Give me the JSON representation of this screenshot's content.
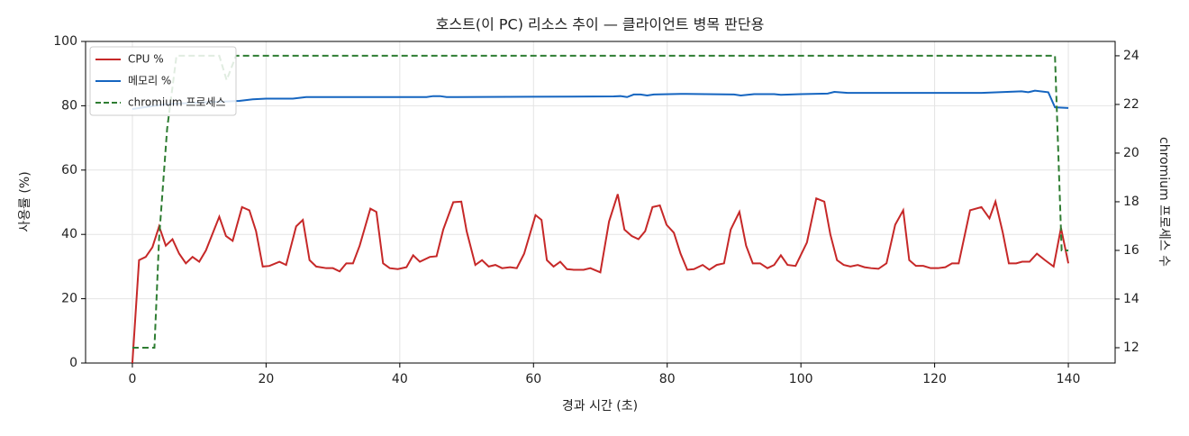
{
  "chart_data": {
    "type": "line",
    "title": "호스트(이 PC) 리소스 추이 — 클라이언트 병목 판단용",
    "xlabel": "경과 시간 (초)",
    "ylabel": "사용률 (%)",
    "y2label": "chromium 프로세스 수",
    "xlim": [
      -7,
      147
    ],
    "xticks": [
      0,
      20,
      40,
      60,
      80,
      100,
      120,
      140
    ],
    "ylim": [
      0,
      100
    ],
    "yticks": [
      0,
      20,
      40,
      60,
      80,
      100
    ],
    "y2lim": [
      11.37,
      24.59
    ],
    "y2ticks": [
      12,
      14,
      16,
      18,
      20,
      22,
      24
    ],
    "grid": true,
    "legend": "upper left",
    "series": [
      {
        "name": "CPU %",
        "color": "#c62828",
        "dash": "solid",
        "x": [
          0,
          1,
          2,
          3,
          4,
          5,
          6,
          7,
          8,
          9,
          10,
          11,
          13,
          14,
          15,
          16.4,
          17.5,
          18.5,
          19.5,
          20.5,
          22,
          23,
          24.5,
          25.5,
          26.5,
          27.5,
          29,
          30,
          31,
          32,
          33,
          34,
          35.6,
          36.5,
          37.5,
          38.5,
          39.7,
          41,
          42,
          43,
          44.5,
          45.5,
          46.5,
          48,
          49.2,
          50,
          51.3,
          52.3,
          53.3,
          54.3,
          55.3,
          56.5,
          57.5,
          58.6,
          60.3,
          61.2,
          62,
          63,
          64,
          65,
          66,
          67.5,
          68.5,
          70,
          71.3,
          72.6,
          73.6,
          74.7,
          75.7,
          76.7,
          77.8,
          78.9,
          79.9,
          81,
          82,
          83,
          84,
          85.3,
          86.3,
          87.4,
          88.5,
          89.5,
          90.8,
          91.8,
          92.8,
          93.9,
          95,
          96,
          97,
          98,
          99.2,
          100.9,
          102.3,
          103.5,
          104.4,
          105.4,
          106.4,
          107.4,
          108.5,
          109.5,
          110.5,
          111.6,
          112.8,
          114.1,
          115.3,
          116.2,
          117.2,
          118.3,
          119.4,
          120.5,
          121.6,
          122.6,
          123.6,
          125.3,
          127,
          128.2,
          129.1,
          130.2,
          131.1,
          132.2,
          133.1,
          134.2,
          135.3,
          136.5,
          137.8,
          138.9,
          140
        ],
        "values": [
          0,
          32,
          33,
          36,
          42.5,
          36.5,
          38.5,
          34,
          31,
          33,
          31.5,
          35,
          45.5,
          39.5,
          38,
          48.5,
          47.5,
          41,
          30,
          30.2,
          31.5,
          30.5,
          42.5,
          44.5,
          32,
          30,
          29.5,
          29.5,
          28.5,
          31,
          31,
          36.5,
          48,
          47,
          31,
          29.5,
          29.2,
          29.8,
          33.5,
          31.5,
          33,
          33.2,
          41.5,
          50,
          50.2,
          41,
          30.5,
          32,
          30,
          30.5,
          29.5,
          29.8,
          29.5,
          34,
          46,
          44.5,
          32,
          30,
          31.5,
          29.2,
          29,
          29,
          29.5,
          28.2,
          44,
          52.5,
          41.5,
          39.5,
          38.5,
          41,
          48.5,
          49,
          43,
          40.5,
          34,
          29,
          29.2,
          30.5,
          29,
          30.5,
          31,
          41.5,
          47,
          36.5,
          31,
          31,
          29.5,
          30.5,
          33.5,
          30.5,
          30.2,
          37.5,
          51.2,
          50.2,
          40,
          32,
          30.5,
          30,
          30.5,
          29.8,
          29.5,
          29.3,
          31,
          43,
          47.5,
          32,
          30.2,
          30.2,
          29.5,
          29.5,
          29.8,
          31,
          31,
          47.5,
          48.5,
          45,
          50.2,
          40.5,
          31,
          31,
          31.5,
          31.5,
          34,
          32,
          30,
          42,
          31
        ]
      },
      {
        "name": "메모리 %",
        "color": "#1565c0",
        "dash": "solid",
        "x": [
          0,
          5,
          10,
          16,
          18,
          20,
          24,
          26,
          44,
          45,
          46,
          47,
          60,
          72,
          73,
          74,
          75,
          76,
          77,
          78,
          82,
          90,
          91,
          93,
          96,
          97,
          100,
          104,
          105,
          107,
          117,
          127,
          133,
          134,
          135,
          137,
          138,
          140
        ],
        "values": [
          79,
          80.5,
          81,
          81.5,
          82,
          82.2,
          82.2,
          82.7,
          82.7,
          83,
          83,
          82.7,
          82.8,
          82.9,
          83,
          82.7,
          83.5,
          83.5,
          83.2,
          83.5,
          83.7,
          83.5,
          83.2,
          83.6,
          83.6,
          83.4,
          83.6,
          83.8,
          84.3,
          84,
          84,
          84,
          84.5,
          84.2,
          84.7,
          84.2,
          79.5,
          79.3
        ]
      },
      {
        "name": "chromium 프로세스",
        "color": "#2e7d32",
        "dash": "dashed",
        "axis": "y2",
        "x": [
          0,
          3.3,
          4,
          5.2,
          6.6,
          13,
          14.1,
          15.5,
          138,
          139,
          140
        ],
        "values": [
          12,
          12,
          16.5,
          21,
          24,
          24,
          23,
          24,
          24,
          16,
          16
        ]
      }
    ]
  }
}
